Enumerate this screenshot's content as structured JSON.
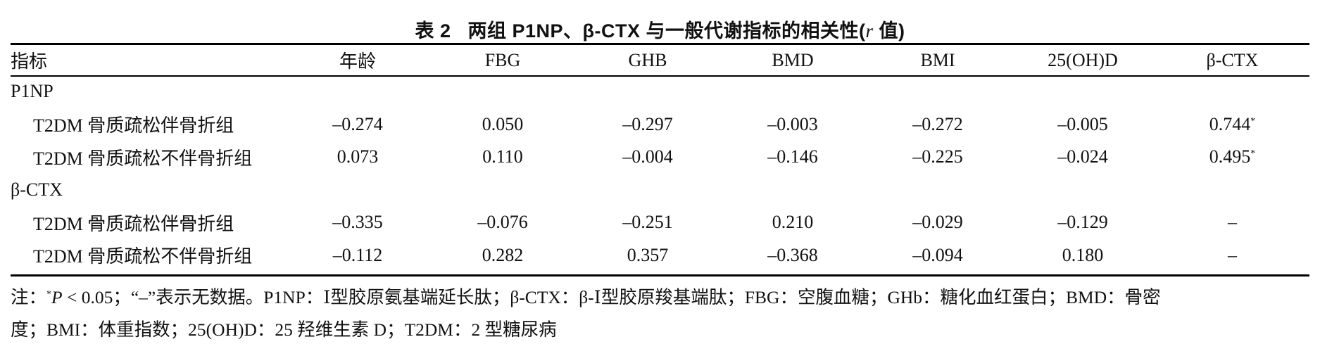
{
  "caption": {
    "label": "表 2",
    "text": "两组 P1NP、β-CTX 与一般代谢指标的相关性(",
    "r": "r",
    "tail": " 值)"
  },
  "table": {
    "headers": [
      "指标",
      "年龄",
      "FBG",
      "GHB",
      "BMD",
      "BMI",
      "25(OH)D",
      "β-CTX"
    ],
    "groups": [
      {
        "name": "P1NP",
        "rows": [
          {
            "label": "T2DM 骨质疏松伴骨折组",
            "values": [
              "–0.274",
              "0.050",
              "–0.297",
              "–0.003",
              "–0.272",
              "–0.005",
              "0.744"
            ],
            "marks": [
              "",
              "",
              "",
              "",
              "",
              "",
              "*"
            ]
          },
          {
            "label": "T2DM 骨质疏松不伴骨折组",
            "values": [
              "0.073",
              "0.110",
              "–0.004",
              "–0.146",
              "–0.225",
              "–0.024",
              "0.495"
            ],
            "marks": [
              "",
              "",
              "",
              "",
              "",
              "",
              "*"
            ]
          }
        ]
      },
      {
        "name": "β-CTX",
        "rows": [
          {
            "label": "T2DM 骨质疏松伴骨折组",
            "values": [
              "–0.335",
              "–0.076",
              "–0.251",
              "0.210",
              "–0.029",
              "–0.129",
              "–"
            ],
            "marks": [
              "",
              "",
              "",
              "",
              "",
              "",
              ""
            ]
          },
          {
            "label": "T2DM 骨质疏松不伴骨折组",
            "values": [
              "–0.112",
              "0.282",
              "0.357",
              "–0.368",
              "–0.094",
              "0.180",
              "–"
            ],
            "marks": [
              "",
              "",
              "",
              "",
              "",
              "",
              ""
            ]
          }
        ]
      }
    ]
  },
  "note": {
    "prefix": "注：",
    "star": "*",
    "p": "P",
    "rest1": " < 0.05；“–”表示无数据。P1NP：Ⅰ型胶原氨基端延长肽；β-CTX：β-Ⅰ型胶原羧基端肽；FBG：空腹血糖；GHb：糖化血红蛋白；BMD：骨密",
    "rest2": "度；BMI：体重指数；25(OH)D：25 羟维生素 D；T2DM：2 型糖尿病"
  }
}
